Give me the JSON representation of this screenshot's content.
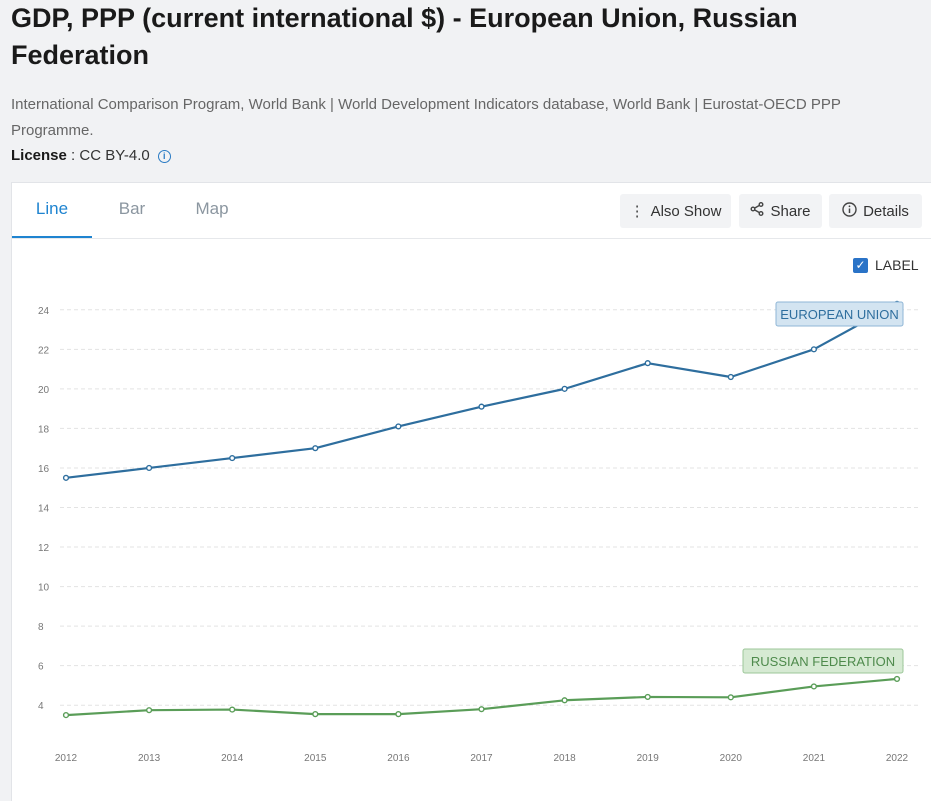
{
  "header": {
    "title": "GDP, PPP (current international $) - European Union, Russian Federation",
    "sources": "International Comparison Program, World Bank | World Development Indicators database, World Bank | Eurostat-OECD PPP Programme.",
    "license_label": "License",
    "license_value": "CC BY-4.0",
    "info_icon": "info-icon"
  },
  "tabs": [
    {
      "label": "Line",
      "active": true
    },
    {
      "label": "Bar",
      "active": false
    },
    {
      "label": "Map",
      "active": false
    }
  ],
  "toolbar": {
    "also_show": {
      "label": "Also Show",
      "icon": "kebab-icon"
    },
    "share": {
      "label": "Share",
      "icon": "share-icon"
    },
    "details": {
      "label": "Details",
      "icon": "info-icon"
    }
  },
  "label_toggle": {
    "label": "LABEL",
    "checked": true
  },
  "colors": {
    "eu": "#2e6e9e",
    "ru": "#5a9d58",
    "eu_label_bg": "#d3e4f1",
    "eu_label_border": "#8fb6d6",
    "ru_label_bg": "#d6ead3",
    "ru_label_border": "#9cc799",
    "accent": "#1f84d0"
  },
  "chart_data": {
    "type": "line",
    "x": [
      2012,
      2013,
      2014,
      2015,
      2016,
      2017,
      2018,
      2019,
      2020,
      2021,
      2022
    ],
    "ylim": [
      3,
      25
    ],
    "yticks": [
      4,
      6,
      8,
      10,
      12,
      14,
      16,
      18,
      20,
      22,
      24
    ],
    "grid": true,
    "series": [
      {
        "name": "EUROPEAN UNION",
        "key": "eu",
        "values": [
          15.5,
          16.0,
          16.5,
          17.0,
          18.1,
          19.1,
          20.0,
          21.3,
          20.6,
          22.0,
          24.3
        ]
      },
      {
        "name": "RUSSIAN FEDERATION",
        "key": "ru",
        "values": [
          3.5,
          3.75,
          3.78,
          3.55,
          3.55,
          3.8,
          4.25,
          4.42,
          4.4,
          4.95,
          5.33
        ]
      }
    ]
  }
}
